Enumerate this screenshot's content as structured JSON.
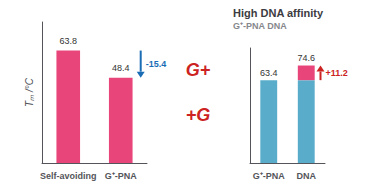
{
  "chart_data": [
    {
      "type": "bar",
      "categories": [
        "Self-avoiding",
        "G⁺-PNA"
      ],
      "values": [
        63.8,
        48.4
      ],
      "color": "#e8457a",
      "ylim": [
        0,
        80
      ],
      "yticks": [],
      "ylabel": "Tₘ /°C",
      "data_labels": true,
      "tick_labels": "x",
      "grid": false,
      "annotations": [
        {
          "text": "-15.4",
          "x": "G⁺-PNA",
          "from": 63.8,
          "to": 48.4,
          "color": "#1a6db5"
        },
        {
          "text": "G+",
          "color": "#cc2222"
        },
        {
          "text": "+G",
          "color": "#cc2222"
        }
      ]
    },
    {
      "type": "bar",
      "title": "High DNA affinity",
      "subtitle": "G⁺-PNA DNA",
      "categories": [
        "G⁺-PNA",
        "DNA"
      ],
      "stacked": true,
      "series": [
        {
          "color": "#5aadca",
          "values": [
            63.4,
            63.4
          ]
        },
        {
          "color": "#e8457a",
          "values": [
            null,
            11.2
          ]
        }
      ],
      "ylim": [
        0,
        88
      ],
      "yticks": [],
      "tick_labels": "x",
      "grid": false,
      "annotations": [
        {
          "text": "63.4",
          "x": "G⁺-PNA",
          "y": 63.4
        },
        {
          "text": "74.6",
          "x": "DNA",
          "y": 74.6
        },
        {
          "text": "+11.2",
          "x": "DNA",
          "from": 63.4,
          "to": 74.6,
          "color": "#cc2222"
        }
      ]
    }
  ]
}
